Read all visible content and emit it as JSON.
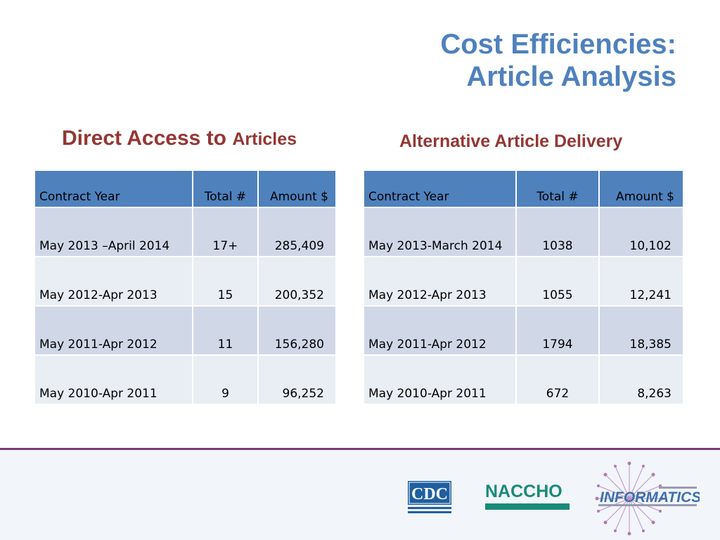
{
  "slide": {
    "title_line1": "Cost Efficiencies:",
    "title_line2": "Article Analysis",
    "left_heading_main": "Direct Access to",
    "left_heading_small": "Articles",
    "right_heading": "Alternative Article Delivery"
  },
  "left_table": {
    "headers": [
      "Contract Year",
      "Total  #",
      "Amount $"
    ],
    "rows": [
      [
        "May 2013 –April 2014",
        "17+",
        "285,409"
      ],
      [
        "May 2012-Apr 2013",
        "15",
        "200,352"
      ],
      [
        "May 2011-Apr 2012",
        "11",
        "156,280"
      ],
      [
        "May 2010-Apr 2011",
        "9",
        "96,252"
      ]
    ]
  },
  "right_table": {
    "headers": [
      "Contract Year",
      "Total #",
      "Amount $"
    ],
    "rows": [
      [
        "May 2013-March 2014",
        "1038",
        "10,102"
      ],
      [
        "May 2012-Apr 2013",
        "1055",
        "12,241"
      ],
      [
        "May 2011-Apr 2012",
        "1794",
        "18,385"
      ],
      [
        "May 2010-Apr 2011",
        "672",
        "8,263"
      ]
    ]
  },
  "logos": {
    "cdc_text": "CDC",
    "naccho_text": "NACCHO",
    "informatics_text": "INFORMATICS"
  },
  "colors": {
    "title": "#4f81bd",
    "subheading": "#943634",
    "header_fill": "#4f81bd",
    "row_odd": "#d0d8e8",
    "row_even": "#e9edf4"
  }
}
